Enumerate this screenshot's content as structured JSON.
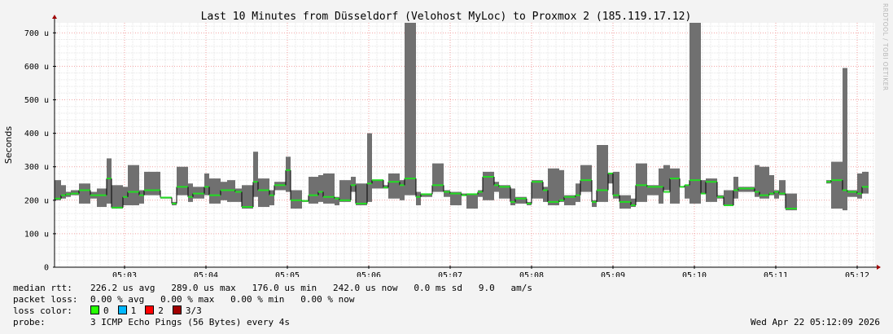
{
  "watermark": "RRDTOOL / TOBI OETIKER",
  "chart_data": {
    "type": "line",
    "title": "Last 10 Minutes from Düsseldorf (Velohost MyLoc) to Proxmox 2 (185.119.17.12)",
    "ylabel": "Seconds",
    "xlabel": "",
    "ylim": [
      0,
      730
    ],
    "xlim": [
      0,
      1008
    ],
    "yticks": [
      {
        "v": 0,
        "label": "0"
      },
      {
        "v": 100,
        "label": "100 u"
      },
      {
        "v": 200,
        "label": "200 u"
      },
      {
        "v": 300,
        "label": "300 u"
      },
      {
        "v": 400,
        "label": "400 u"
      },
      {
        "v": 500,
        "label": "500 u"
      },
      {
        "v": 600,
        "label": "600 u"
      },
      {
        "v": 700,
        "label": "700 u"
      }
    ],
    "xticks": [
      {
        "v": 86,
        "label": "05:03"
      },
      {
        "v": 186,
        "label": "05:04"
      },
      {
        "v": 286,
        "label": "05:05"
      },
      {
        "v": 386,
        "label": "05:06"
      },
      {
        "v": 486,
        "label": "05:07"
      },
      {
        "v": 586,
        "label": "05:08"
      },
      {
        "v": 686,
        "label": "05:09"
      },
      {
        "v": 786,
        "label": "05:10"
      },
      {
        "v": 886,
        "label": "05:11"
      },
      {
        "v": 986,
        "label": "05:12"
      }
    ],
    "grid": true,
    "series": [
      {
        "name": "median rtt",
        "color": "#22dd22",
        "smoke_color": "#707070"
      }
    ],
    "points": [
      [
        0,
        8,
        200,
        260,
        205
      ],
      [
        8,
        6,
        205,
        245,
        215
      ],
      [
        14,
        6,
        210,
        225,
        218
      ],
      [
        20,
        10,
        215,
        230,
        220
      ],
      [
        30,
        14,
        190,
        250,
        230
      ],
      [
        44,
        8,
        205,
        225,
        215
      ],
      [
        52,
        12,
        180,
        235,
        215
      ],
      [
        64,
        6,
        190,
        325,
        265
      ],
      [
        70,
        14,
        175,
        245,
        178
      ],
      [
        84,
        6,
        185,
        240,
        210
      ],
      [
        90,
        14,
        185,
        305,
        225
      ],
      [
        104,
        6,
        190,
        230,
        215
      ],
      [
        110,
        20,
        215,
        285,
        230
      ],
      [
        130,
        14,
        205,
        210,
        208
      ],
      [
        144,
        6,
        185,
        195,
        190
      ],
      [
        150,
        14,
        215,
        300,
        240
      ],
      [
        164,
        6,
        195,
        250,
        210
      ],
      [
        170,
        14,
        205,
        240,
        220
      ],
      [
        184,
        6,
        215,
        280,
        240
      ],
      [
        190,
        14,
        190,
        265,
        215
      ],
      [
        204,
        8,
        200,
        255,
        230
      ],
      [
        212,
        10,
        195,
        260,
        230
      ],
      [
        222,
        8,
        195,
        235,
        225
      ],
      [
        230,
        14,
        175,
        245,
        180
      ],
      [
        244,
        6,
        210,
        345,
        255
      ],
      [
        250,
        14,
        180,
        265,
        230
      ],
      [
        264,
        6,
        185,
        230,
        215
      ],
      [
        270,
        14,
        230,
        255,
        245
      ],
      [
        284,
        6,
        225,
        330,
        290
      ],
      [
        290,
        14,
        175,
        230,
        200
      ],
      [
        304,
        8,
        195,
        200,
        198
      ],
      [
        312,
        12,
        190,
        270,
        215
      ],
      [
        324,
        6,
        195,
        275,
        225
      ],
      [
        330,
        14,
        190,
        280,
        210
      ],
      [
        344,
        6,
        185,
        210,
        205
      ],
      [
        350,
        14,
        195,
        260,
        200
      ],
      [
        364,
        6,
        225,
        270,
        245
      ],
      [
        370,
        14,
        185,
        250,
        190
      ],
      [
        384,
        6,
        195,
        400,
        250
      ],
      [
        390,
        14,
        235,
        260,
        260
      ],
      [
        404,
        6,
        235,
        245,
        238
      ],
      [
        410,
        14,
        205,
        280,
        255
      ],
      [
        424,
        6,
        200,
        260,
        245
      ],
      [
        430,
        14,
        215,
        730,
        265
      ],
      [
        444,
        6,
        185,
        225,
        210
      ],
      [
        450,
        14,
        210,
        220,
        218
      ],
      [
        464,
        14,
        225,
        310,
        245
      ],
      [
        478,
        8,
        210,
        230,
        225
      ],
      [
        486,
        14,
        185,
        225,
        220
      ],
      [
        500,
        6,
        215,
        220,
        215
      ],
      [
        506,
        14,
        175,
        220,
        218
      ],
      [
        520,
        6,
        210,
        230,
        225
      ],
      [
        526,
        14,
        200,
        285,
        270
      ],
      [
        540,
        6,
        225,
        255,
        245
      ],
      [
        546,
        14,
        205,
        245,
        240
      ],
      [
        560,
        6,
        185,
        235,
        195
      ],
      [
        566,
        14,
        190,
        210,
        205
      ],
      [
        580,
        6,
        185,
        195,
        190
      ],
      [
        586,
        14,
        205,
        260,
        255
      ],
      [
        600,
        6,
        195,
        240,
        230
      ],
      [
        606,
        14,
        185,
        295,
        195
      ],
      [
        620,
        6,
        195,
        290,
        200
      ],
      [
        626,
        14,
        185,
        215,
        210
      ],
      [
        640,
        6,
        195,
        250,
        215
      ],
      [
        646,
        14,
        225,
        305,
        260
      ],
      [
        660,
        6,
        180,
        200,
        195
      ],
      [
        666,
        14,
        195,
        365,
        230
      ],
      [
        680,
        6,
        250,
        280,
        280
      ],
      [
        686,
        8,
        205,
        285,
        215
      ],
      [
        694,
        14,
        175,
        215,
        195
      ],
      [
        708,
        6,
        180,
        205,
        185
      ],
      [
        714,
        14,
        195,
        310,
        245
      ],
      [
        728,
        14,
        215,
        245,
        240
      ],
      [
        742,
        6,
        190,
        295,
        240
      ],
      [
        748,
        8,
        230,
        305,
        225
      ],
      [
        756,
        12,
        190,
        295,
        265
      ],
      [
        768,
        6,
        245,
        240,
        240
      ],
      [
        774,
        6,
        205,
        245,
        245
      ],
      [
        780,
        14,
        190,
        730,
        260
      ],
      [
        794,
        6,
        220,
        260,
        220
      ],
      [
        800,
        14,
        195,
        265,
        255
      ],
      [
        814,
        8,
        205,
        215,
        210
      ],
      [
        822,
        12,
        185,
        230,
        185
      ],
      [
        834,
        6,
        205,
        270,
        230
      ],
      [
        840,
        20,
        225,
        240,
        235
      ],
      [
        860,
        6,
        210,
        305,
        225
      ],
      [
        866,
        12,
        205,
        300,
        215
      ],
      [
        878,
        6,
        215,
        275,
        220
      ],
      [
        884,
        6,
        205,
        230,
        225
      ],
      [
        890,
        8,
        215,
        260,
        220
      ],
      [
        898,
        14,
        170,
        220,
        175
      ],
      [
        948,
        6,
        250,
        260,
        255
      ],
      [
        954,
        14,
        175,
        315,
        260
      ],
      [
        968,
        6,
        170,
        595,
        230
      ],
      [
        974,
        12,
        210,
        230,
        225
      ],
      [
        986,
        6,
        205,
        280,
        220
      ],
      [
        992,
        8,
        220,
        285,
        240
      ]
    ]
  },
  "stats": {
    "median": {
      "label": "median rtt:",
      "text": "226.2 us avg   289.0 us max   176.0 us min   242.0 us now   0.0 ms sd   9.0   am/s"
    },
    "loss": {
      "label": "packet loss:",
      "text": "0.00 % avg   0.00 % max   0.00 % min   0.00 % now"
    },
    "loss_color": {
      "label": "loss color:",
      "items": [
        {
          "label": "0",
          "color": "#26ff00"
        },
        {
          "label": "1",
          "color": "#00b8ff"
        },
        {
          "label": "2",
          "color": "#ff0000"
        },
        {
          "label": "3/3",
          "color": "#a00000"
        }
      ]
    },
    "probe": {
      "label": "probe:",
      "text": "3 ICMP Echo Pings (56 Bytes) every 4s"
    }
  },
  "timestamp": "Wed Apr 22 05:12:09 2026"
}
